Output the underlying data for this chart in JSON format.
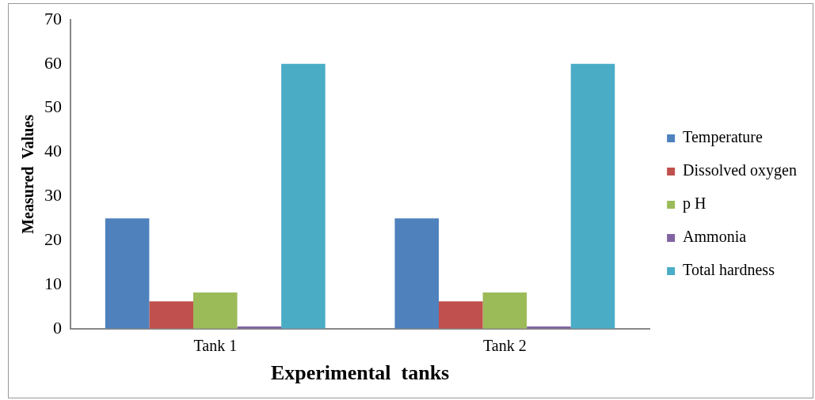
{
  "chart_data": {
    "type": "bar",
    "xlabel": "Experimental  tanks",
    "ylabel": "Measured  Values",
    "categories": [
      "Tank 1",
      "Tank 2"
    ],
    "series": [
      {
        "name": "Temperature",
        "color": "#4f81bd",
        "values": [
          25,
          25
        ]
      },
      {
        "name": "Dissolved oxygen",
        "color": "#c0504d",
        "values": [
          6.2,
          6.2
        ]
      },
      {
        "name": "p H",
        "color": "#9bbb59",
        "values": [
          8.2,
          8.2
        ]
      },
      {
        "name": "Ammonia",
        "color": "#8064a2",
        "values": [
          0.5,
          0.5
        ]
      },
      {
        "name": "Total hardness",
        "color": "#4bacc6",
        "values": [
          60,
          60
        ]
      }
    ],
    "ylim": [
      0,
      70
    ],
    "yticks": [
      0,
      10,
      20,
      30,
      40,
      50,
      60,
      70
    ],
    "grid": false,
    "legend": "right"
  }
}
